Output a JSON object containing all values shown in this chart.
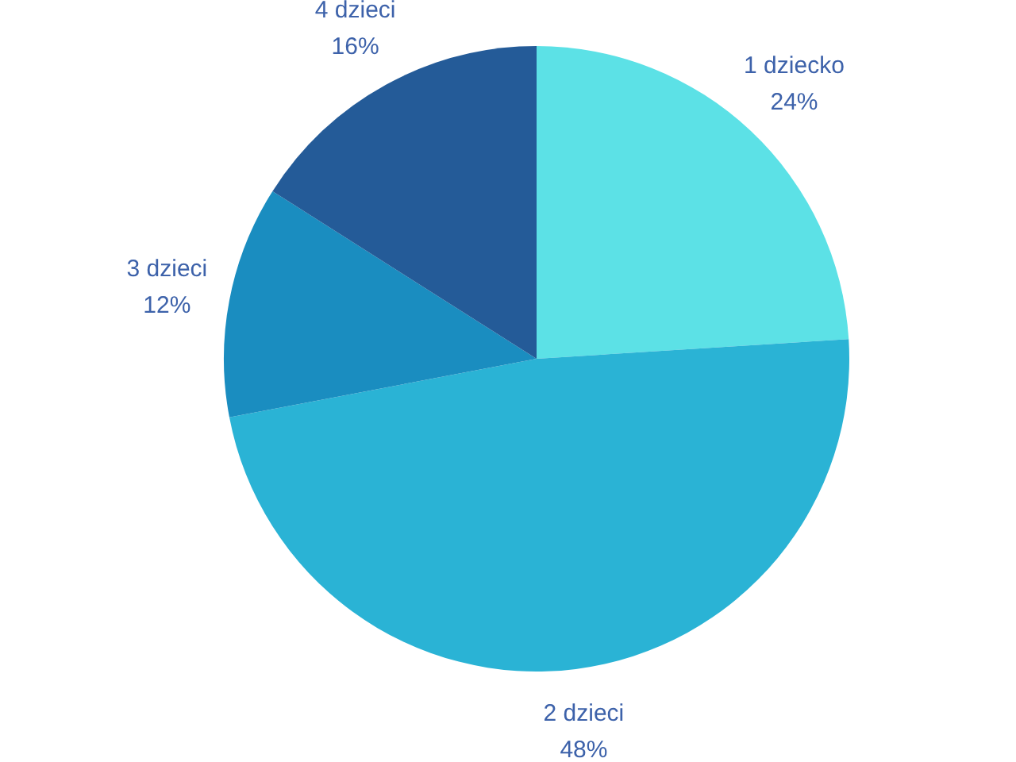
{
  "chart_data": {
    "type": "pie",
    "categories": [
      "1 dziecko",
      "2 dzieci",
      "3 dzieci",
      "4 dzieci"
    ],
    "values": [
      24,
      48,
      12,
      16
    ],
    "value_labels": [
      "24%",
      "48%",
      "12%",
      "16%"
    ],
    "colors": [
      "#5ce1e6",
      "#2ab3d5",
      "#1a8dc0",
      "#245b98"
    ]
  }
}
